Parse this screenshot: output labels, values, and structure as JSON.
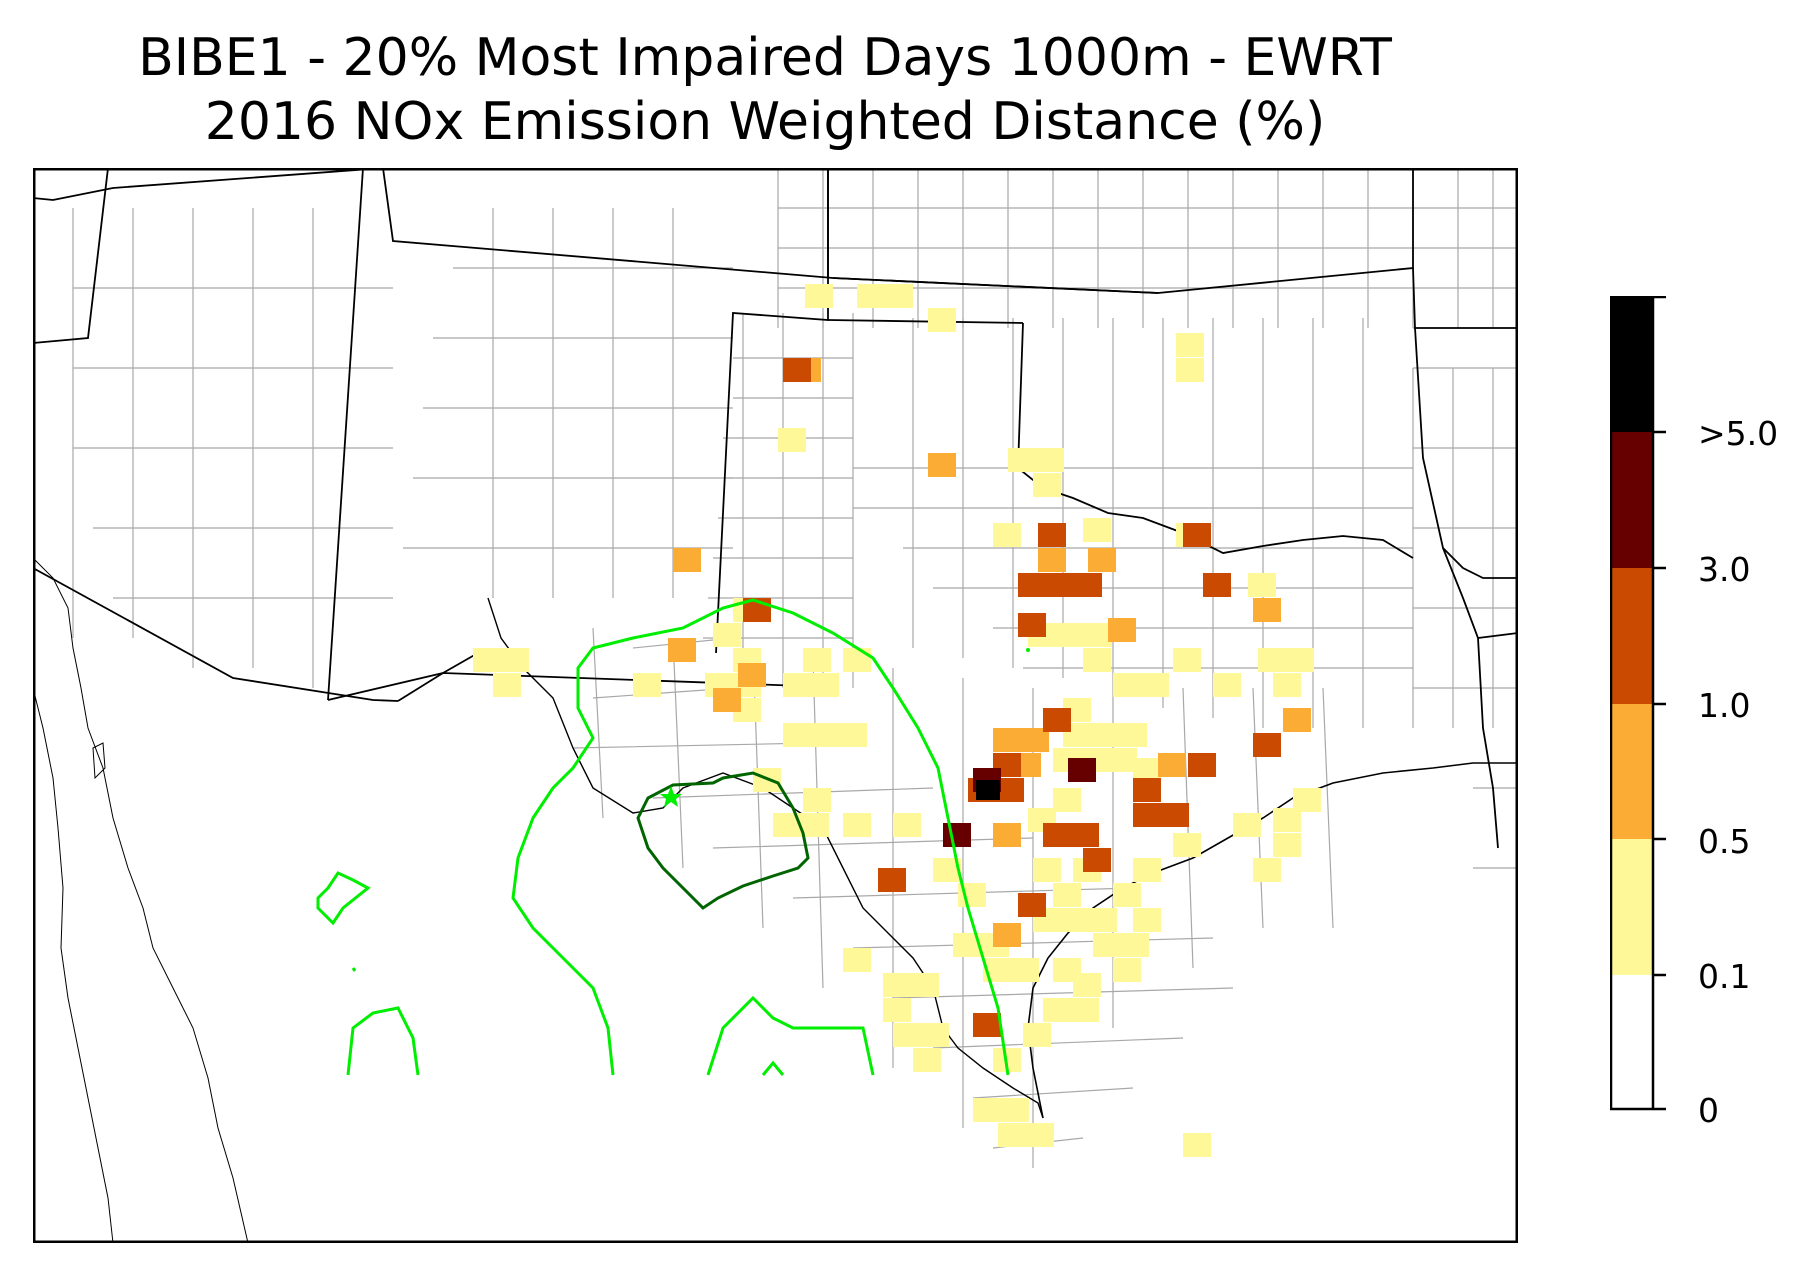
{
  "title_line1": "BIBE1 - 20% Most Impaired Days 1000m - EWRT",
  "title_line2": "2016 NOx Emission Weighted Distance (%)",
  "colorbar": {
    "labels": [
      ">5.0",
      "3.0",
      "1.0",
      "0.5",
      "0.1",
      "0"
    ],
    "colors": [
      "#000000",
      "#660000",
      "#c94a00",
      "#fbac34",
      "#fff898",
      "#ffffff"
    ]
  },
  "colors": {
    "contour_light": "#00ee00",
    "contour_dark": "#006400",
    "county": "#a8a8a8",
    "state": "#000000"
  }
}
